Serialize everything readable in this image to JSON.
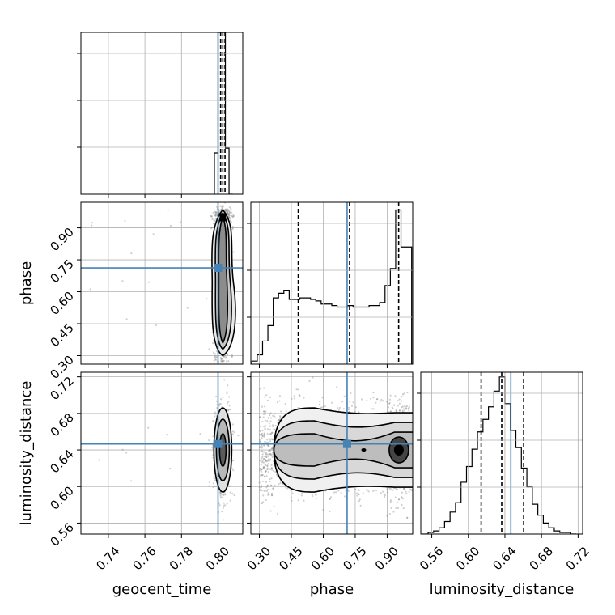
{
  "chart_data": {
    "type": "corner",
    "parameters": [
      "geocent_time",
      "phase",
      "luminosity_distance"
    ],
    "truths": {
      "geocent_time": 0.8,
      "phase": 0.712,
      "luminosity_distance": 0.6465
    },
    "grid": true,
    "axes": {
      "geocent_time": {
        "range": [
          0.725,
          0.8135
        ],
        "ticks": [
          "0.74",
          "0.76",
          "0.78",
          "0.80"
        ],
        "tick_values": [
          0.74,
          0.76,
          0.78,
          0.8
        ]
      },
      "phase": {
        "range": [
          0.26,
          1.02
        ],
        "ticks": [
          "0.30",
          "0.45",
          "0.60",
          "0.75",
          "0.90"
        ],
        "tick_values": [
          0.3,
          0.45,
          0.6,
          0.75,
          0.9
        ]
      },
      "luminosity_distance": {
        "range": [
          0.548,
          0.725
        ],
        "ticks": [
          "0.56",
          "0.60",
          "0.64",
          "0.68",
          "0.72"
        ],
        "tick_values": [
          0.56,
          0.6,
          0.64,
          0.68,
          0.72
        ]
      }
    },
    "histograms": [
      {
        "param": "geocent_time",
        "edges": [
          0.798,
          0.8,
          0.802,
          0.804,
          0.806,
          0.808
        ],
        "counts": [
          0.26,
          1.02,
          1.02,
          0.29,
          0.0
        ],
        "ymax": 1.02,
        "quantiles": [
          0.8014,
          0.8026,
          0.8038
        ]
      },
      {
        "param": "phase",
        "edges": [
          0.265,
          0.29,
          0.315,
          0.34,
          0.365,
          0.39,
          0.415,
          0.44,
          0.465,
          0.49,
          0.515,
          0.54,
          0.565,
          0.59,
          0.615,
          0.64,
          0.665,
          0.69,
          0.715,
          0.74,
          0.765,
          0.79,
          0.815,
          0.84,
          0.865,
          0.89,
          0.915,
          0.94,
          0.965,
          0.99,
          1.015
        ],
        "counts": [
          0.02,
          0.06,
          0.15,
          0.25,
          0.43,
          0.46,
          0.48,
          0.42,
          0.42,
          0.43,
          0.43,
          0.42,
          0.41,
          0.39,
          0.39,
          0.38,
          0.37,
          0.37,
          0.38,
          0.37,
          0.37,
          0.37,
          0.38,
          0.38,
          0.4,
          0.51,
          0.62,
          1.0,
          0.76,
          0.76
        ],
        "ymax": 1.05,
        "quantiles": [
          0.4825,
          0.7235,
          0.954
        ]
      },
      {
        "param": "luminosity_distance",
        "edges": [
          0.55,
          0.556,
          0.562,
          0.568,
          0.574,
          0.58,
          0.586,
          0.592,
          0.598,
          0.604,
          0.61,
          0.616,
          0.622,
          0.628,
          0.634,
          0.64,
          0.646,
          0.652,
          0.658,
          0.664,
          0.67,
          0.676,
          0.682,
          0.688,
          0.694,
          0.7,
          0.706,
          0.712,
          0.718
        ],
        "counts": [
          0.0,
          0.01,
          0.02,
          0.04,
          0.08,
          0.14,
          0.2,
          0.33,
          0.43,
          0.54,
          0.65,
          0.73,
          0.81,
          0.91,
          1.0,
          0.83,
          0.66,
          0.55,
          0.42,
          0.3,
          0.19,
          0.12,
          0.07,
          0.04,
          0.02,
          0.01,
          0.01,
          0.0
        ],
        "ymax": 1.03,
        "quantiles": [
          0.614,
          0.6365,
          0.6605
        ]
      }
    ],
    "joint_panels": [
      {
        "x": "geocent_time",
        "y": "phase"
      },
      {
        "x": "geocent_time",
        "y": "luminosity_distance"
      },
      {
        "x": "phase",
        "y": "luminosity_distance"
      }
    ],
    "colors": {
      "truth": "#4682b4",
      "contour": "#000000",
      "points": "#777777",
      "grid": "#b0b0b0",
      "spine": "#000000"
    }
  }
}
